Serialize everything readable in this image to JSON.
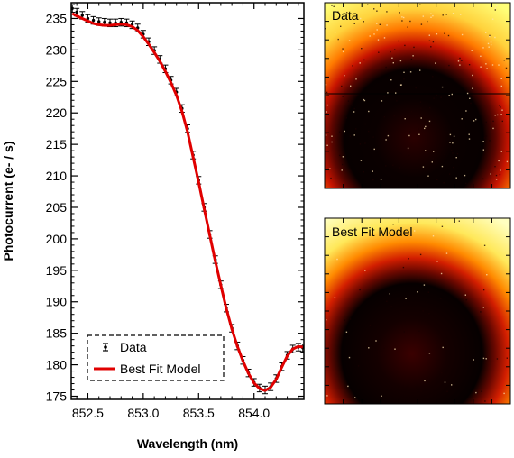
{
  "chart_data": [
    {
      "type": "line",
      "xlabel": "Wavelength (nm)",
      "ylabel": "Photocurrent (e- / s)",
      "xlim": [
        852.35,
        854.45
      ],
      "ylim": [
        174.5,
        237.5
      ],
      "xticks": [
        852.5,
        853.0,
        853.5,
        854.0
      ],
      "yticks": [
        175,
        180,
        185,
        190,
        195,
        200,
        205,
        210,
        215,
        220,
        225,
        230,
        235
      ],
      "legend_placement": "bottom-left",
      "grid": false,
      "series": [
        {
          "name": "Data",
          "style": "points-with-errorbars",
          "color": "#000000",
          "x": [
            852.36,
            852.4,
            852.45,
            852.5,
            852.55,
            852.6,
            852.65,
            852.7,
            852.75,
            852.8,
            852.85,
            852.9,
            852.95,
            853.0,
            853.05,
            853.1,
            853.15,
            853.2,
            853.25,
            853.3,
            853.35,
            853.4,
            853.45,
            853.5,
            853.55,
            853.6,
            853.65,
            853.7,
            853.75,
            853.8,
            853.85,
            853.9,
            853.95,
            854.0,
            854.05,
            854.1,
            854.15,
            854.2,
            854.25,
            854.3,
            854.35,
            854.4,
            854.44
          ],
          "y": [
            236.6,
            236.0,
            235.5,
            235.0,
            234.7,
            234.5,
            234.4,
            234.3,
            234.3,
            234.4,
            234.3,
            234.0,
            233.5,
            232.5,
            231.3,
            229.9,
            228.5,
            227.0,
            225.2,
            223.3,
            220.7,
            217.5,
            213.3,
            209.3,
            205.0,
            200.7,
            196.7,
            192.7,
            189.0,
            185.8,
            183.0,
            180.7,
            178.7,
            177.2,
            176.3,
            176.0,
            176.5,
            177.8,
            179.7,
            181.5,
            182.5,
            182.8,
            182.7
          ],
          "yerr": 0.6
        },
        {
          "name": "Best Fit Model",
          "style": "line",
          "color": "#e00000",
          "x": [
            852.36,
            852.4,
            852.45,
            852.5,
            852.55,
            852.6,
            852.65,
            852.7,
            852.75,
            852.8,
            852.85,
            852.9,
            852.95,
            853.0,
            853.05,
            853.1,
            853.15,
            853.2,
            853.25,
            853.3,
            853.35,
            853.4,
            853.45,
            853.5,
            853.55,
            853.6,
            853.65,
            853.7,
            853.75,
            853.8,
            853.85,
            853.9,
            853.95,
            854.0,
            854.05,
            854.1,
            854.15,
            854.2,
            854.25,
            854.3,
            854.35,
            854.4,
            854.44
          ],
          "y": [
            235.8,
            235.4,
            235.0,
            234.6,
            234.2,
            234.0,
            233.9,
            233.9,
            234.0,
            234.1,
            234.0,
            233.7,
            233.1,
            232.1,
            230.9,
            229.6,
            228.2,
            226.6,
            224.8,
            222.8,
            220.2,
            217.0,
            213.0,
            209.0,
            204.8,
            200.6,
            196.5,
            192.6,
            188.9,
            185.7,
            182.9,
            180.6,
            178.6,
            177.1,
            176.2,
            175.9,
            176.4,
            177.7,
            179.6,
            181.4,
            182.5,
            182.9,
            182.8
          ]
        }
      ]
    },
    {
      "type": "heatmap",
      "title": "Data",
      "color_scale": [
        "#000000",
        "#3a0000",
        "#c81400",
        "#ff8c00",
        "#ffff3c",
        "#ffffc8"
      ],
      "pattern": "dark disk centered near the bottom middle, bright yellow corners",
      "horizontal_line_through_image": true
    },
    {
      "type": "heatmap",
      "title": "Best Fit Model",
      "color_scale": [
        "#000000",
        "#3a0000",
        "#c81400",
        "#ff8c00",
        "#ffff3c",
        "#ffffc8"
      ],
      "pattern": "dark disk centered near the bottom middle, bright yellow corners",
      "horizontal_line_through_image": false
    }
  ]
}
